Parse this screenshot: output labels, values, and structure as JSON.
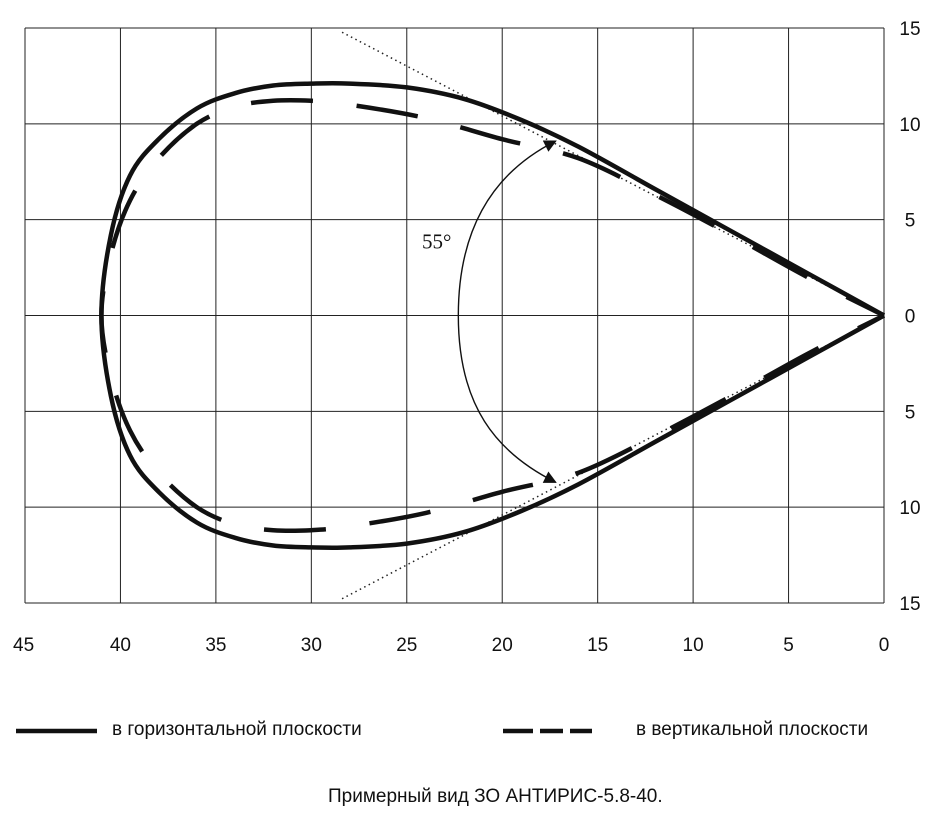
{
  "chart_data": {
    "type": "line",
    "title": "Примерный вид ЗО АНТИРИС-5.8-40.",
    "x_ticks": [
      "45",
      "40",
      "35",
      "30",
      "25",
      "20",
      "15",
      "10",
      "5",
      "0"
    ],
    "y_ticks": [
      "15",
      "10",
      "5",
      "0",
      "5",
      "10",
      "15"
    ],
    "xlim": [
      45,
      0
    ],
    "ylim": [
      -15,
      15
    ],
    "grid": true,
    "angle_label": "55°",
    "angle_deg": 55,
    "legend_placement": "bottom",
    "series": [
      {
        "name": "в горизонтальной плоскости",
        "style": "solid",
        "x": [
          0,
          4,
          8,
          12,
          16,
          19,
          22,
          25,
          28,
          30,
          32,
          34,
          36,
          38,
          39.5,
          40.5,
          41,
          40.5,
          39.5,
          38,
          36,
          34,
          32,
          30,
          28,
          25,
          22,
          19,
          16,
          12,
          8,
          4,
          0
        ],
        "y": [
          0,
          2.2,
          4.4,
          6.6,
          8.8,
          10.2,
          11.3,
          11.9,
          12.1,
          12.1,
          12.0,
          11.6,
          10.8,
          9.2,
          7.3,
          4.2,
          0,
          -4.2,
          -7.3,
          -9.2,
          -10.8,
          -11.6,
          -12.0,
          -12.1,
          -12.1,
          -11.9,
          -11.3,
          -10.2,
          -8.8,
          -6.6,
          -4.4,
          -2.2,
          0
        ]
      },
      {
        "name": "в вертикальной плоскости",
        "style": "dashed",
        "x": [
          0,
          4,
          8,
          12,
          16,
          20,
          24,
          28,
          30,
          32,
          34,
          36,
          38,
          39.5,
          40.5,
          41,
          40.5,
          39.5,
          38,
          36,
          34,
          32,
          30,
          28,
          24,
          20,
          16,
          12,
          8,
          4,
          0
        ],
        "y": [
          0,
          2.0,
          4.2,
          6.3,
          8.2,
          9.2,
          10.3,
          11.0,
          11.2,
          11.2,
          10.9,
          10.0,
          8.2,
          6.0,
          3.2,
          0,
          -3.2,
          -6.0,
          -8.2,
          -10.0,
          -10.9,
          -11.2,
          -11.2,
          -11.0,
          -10.3,
          -9.2,
          -8.2,
          -6.3,
          -4.2,
          -2.0,
          0
        ]
      }
    ]
  },
  "legend": {
    "solid_label": "в горизонтальной плоскости",
    "dashed_label": "в вертикальной плоскости"
  },
  "caption": "Примерный вид ЗО АНТИРИС-5.8-40."
}
